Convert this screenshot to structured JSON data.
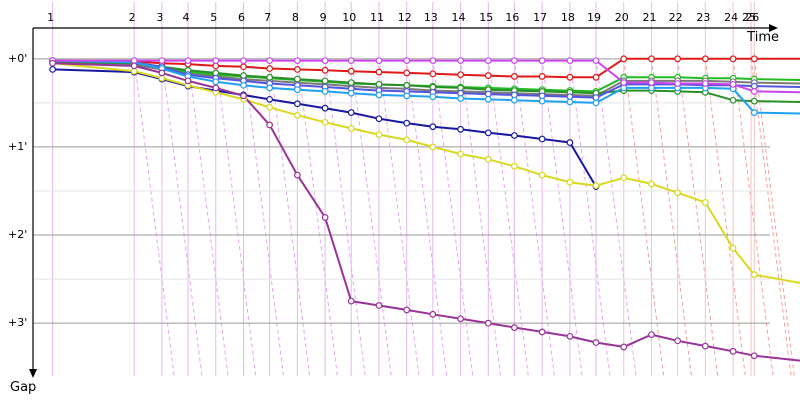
{
  "chart_data": {
    "type": "line",
    "chart_kind": "gap chart (lap chart of gaps to leader)",
    "xlabel": "Time",
    "ylabel": "Gap",
    "x_ticks": [
      "1",
      "2",
      "3",
      "4",
      "5",
      "6",
      "7",
      "8",
      "9",
      "10",
      "11",
      "12",
      "13",
      "14",
      "15",
      "16",
      "17",
      "18",
      "19",
      "20",
      "21",
      "22",
      "23",
      "24",
      "25",
      "26"
    ],
    "x_tick_times": [
      0,
      0.5,
      0.67,
      0.83,
      1.0,
      1.17,
      1.33,
      1.5,
      1.67,
      1.83,
      2.0,
      2.17,
      2.33,
      2.5,
      2.67,
      2.83,
      3.0,
      3.17,
      3.33,
      3.5,
      3.67,
      3.83,
      4.0,
      4.17,
      4.28,
      4.3
    ],
    "y_ticks": [
      "+0'",
      "+1'",
      "+2'",
      "+3'"
    ],
    "y_tick_values": [
      0,
      1,
      2,
      3
    ],
    "ylim": [
      -0.35,
      3.6
    ],
    "xlim": [
      -0.12,
      4.58
    ],
    "y_inverted": true,
    "grid": true,
    "legend": "none",
    "series": [
      {
        "color": "#e01818",
        "points": [
          [
            0,
            0.02
          ],
          [
            0.5,
            0.03
          ],
          [
            0.67,
            0.05
          ],
          [
            0.83,
            0.06
          ],
          [
            1.0,
            0.08
          ],
          [
            1.17,
            0.09
          ],
          [
            1.33,
            0.11
          ],
          [
            1.5,
            0.12
          ],
          [
            1.67,
            0.13
          ],
          [
            1.83,
            0.14
          ],
          [
            2.0,
            0.15
          ],
          [
            2.17,
            0.16
          ],
          [
            2.33,
            0.17
          ],
          [
            2.5,
            0.18
          ],
          [
            2.67,
            0.19
          ],
          [
            2.83,
            0.2
          ],
          [
            3.0,
            0.2
          ],
          [
            3.17,
            0.21
          ],
          [
            3.33,
            0.21
          ],
          [
            3.5,
            0.0
          ],
          [
            3.67,
            0.0
          ],
          [
            3.83,
            0.0
          ],
          [
            4.0,
            0.0
          ],
          [
            4.17,
            0.0
          ],
          [
            4.3,
            0.0
          ],
          [
            4.6,
            0.0
          ]
        ]
      },
      {
        "color": "#22bb22",
        "points": [
          [
            0,
            0.03
          ],
          [
            0.5,
            0.06
          ],
          [
            0.67,
            0.1
          ],
          [
            0.83,
            0.15
          ],
          [
            1.0,
            0.18
          ],
          [
            1.17,
            0.2
          ],
          [
            1.33,
            0.22
          ],
          [
            1.5,
            0.24
          ],
          [
            1.67,
            0.26
          ],
          [
            1.83,
            0.28
          ],
          [
            2.0,
            0.29
          ],
          [
            2.17,
            0.3
          ],
          [
            2.33,
            0.31
          ],
          [
            2.5,
            0.32
          ],
          [
            2.67,
            0.33
          ],
          [
            2.83,
            0.34
          ],
          [
            3.0,
            0.35
          ],
          [
            3.17,
            0.36
          ],
          [
            3.33,
            0.37
          ],
          [
            3.5,
            0.21
          ],
          [
            3.67,
            0.21
          ],
          [
            3.83,
            0.21
          ],
          [
            4.0,
            0.22
          ],
          [
            4.17,
            0.22
          ],
          [
            4.3,
            0.23
          ],
          [
            4.6,
            0.24
          ]
        ]
      },
      {
        "color": "#7a7a7a",
        "points": [
          [
            0,
            0.04
          ],
          [
            0.5,
            0.07
          ],
          [
            0.67,
            0.12
          ],
          [
            0.83,
            0.17
          ],
          [
            1.0,
            0.2
          ],
          [
            1.17,
            0.23
          ],
          [
            1.33,
            0.25
          ],
          [
            1.5,
            0.27
          ],
          [
            1.67,
            0.29
          ],
          [
            1.83,
            0.31
          ],
          [
            2.0,
            0.33
          ],
          [
            2.17,
            0.34
          ],
          [
            2.33,
            0.36
          ],
          [
            2.5,
            0.37
          ],
          [
            2.67,
            0.38
          ],
          [
            2.83,
            0.39
          ],
          [
            3.0,
            0.4
          ],
          [
            3.17,
            0.41
          ],
          [
            3.33,
            0.42
          ],
          [
            3.5,
            0.25
          ],
          [
            3.67,
            0.25
          ],
          [
            3.83,
            0.25
          ],
          [
            4.0,
            0.25
          ],
          [
            4.17,
            0.26
          ],
          [
            4.3,
            0.27
          ],
          [
            4.6,
            0.28
          ]
        ]
      },
      {
        "color": "#2a8f2a",
        "points": [
          [
            0,
            0.03
          ],
          [
            0.5,
            0.05
          ],
          [
            0.67,
            0.09
          ],
          [
            0.83,
            0.13
          ],
          [
            1.0,
            0.16
          ],
          [
            1.17,
            0.19
          ],
          [
            1.33,
            0.21
          ],
          [
            1.5,
            0.23
          ],
          [
            1.67,
            0.25
          ],
          [
            1.83,
            0.27
          ],
          [
            2.0,
            0.29
          ],
          [
            2.17,
            0.3
          ],
          [
            2.33,
            0.32
          ],
          [
            2.5,
            0.33
          ],
          [
            2.67,
            0.35
          ],
          [
            2.83,
            0.36
          ],
          [
            3.0,
            0.37
          ],
          [
            3.17,
            0.38
          ],
          [
            3.33,
            0.39
          ],
          [
            3.5,
            0.36
          ],
          [
            3.67,
            0.36
          ],
          [
            3.83,
            0.37
          ],
          [
            4.0,
            0.38
          ],
          [
            4.17,
            0.47
          ],
          [
            4.3,
            0.48
          ],
          [
            4.6,
            0.49
          ]
        ]
      },
      {
        "color": "#5555dd",
        "points": [
          [
            0,
            0.02
          ],
          [
            0.5,
            0.04
          ],
          [
            0.67,
            0.09
          ],
          [
            0.83,
            0.18
          ],
          [
            1.0,
            0.22
          ],
          [
            1.17,
            0.25
          ],
          [
            1.33,
            0.28
          ],
          [
            1.5,
            0.3
          ],
          [
            1.67,
            0.32
          ],
          [
            1.83,
            0.34
          ],
          [
            2.0,
            0.36
          ],
          [
            2.17,
            0.37
          ],
          [
            2.33,
            0.38
          ],
          [
            2.5,
            0.39
          ],
          [
            2.67,
            0.4
          ],
          [
            2.83,
            0.41
          ],
          [
            3.0,
            0.42
          ],
          [
            3.17,
            0.43
          ],
          [
            3.33,
            0.44
          ],
          [
            3.5,
            0.29
          ],
          [
            3.67,
            0.29
          ],
          [
            3.83,
            0.29
          ],
          [
            4.0,
            0.3
          ],
          [
            4.17,
            0.3
          ],
          [
            4.3,
            0.31
          ],
          [
            4.6,
            0.32
          ]
        ]
      },
      {
        "color": "#20a0f0",
        "points": [
          [
            0,
            0.02
          ],
          [
            0.5,
            0.04
          ],
          [
            0.67,
            0.11
          ],
          [
            0.83,
            0.2
          ],
          [
            1.0,
            0.26
          ],
          [
            1.17,
            0.3
          ],
          [
            1.33,
            0.33
          ],
          [
            1.5,
            0.35
          ],
          [
            1.67,
            0.37
          ],
          [
            1.83,
            0.39
          ],
          [
            2.0,
            0.41
          ],
          [
            2.17,
            0.42
          ],
          [
            2.33,
            0.43
          ],
          [
            2.5,
            0.45
          ],
          [
            2.67,
            0.46
          ],
          [
            2.83,
            0.47
          ],
          [
            3.0,
            0.48
          ],
          [
            3.17,
            0.49
          ],
          [
            3.33,
            0.5
          ],
          [
            3.5,
            0.33
          ],
          [
            3.67,
            0.33
          ],
          [
            3.83,
            0.33
          ],
          [
            4.0,
            0.33
          ],
          [
            4.17,
            0.34
          ],
          [
            4.3,
            0.61
          ],
          [
            4.6,
            0.62
          ]
        ]
      },
      {
        "color": "#cc44ee",
        "points": [
          [
            0,
            0.02
          ],
          [
            0.5,
            0.02
          ],
          [
            0.67,
            0.02
          ],
          [
            0.83,
            0.02
          ],
          [
            1.0,
            0.02
          ],
          [
            1.17,
            0.02
          ],
          [
            1.33,
            0.02
          ],
          [
            1.5,
            0.02
          ],
          [
            1.67,
            0.02
          ],
          [
            1.83,
            0.02
          ],
          [
            2.0,
            0.02
          ],
          [
            2.17,
            0.02
          ],
          [
            2.33,
            0.02
          ],
          [
            2.5,
            0.02
          ],
          [
            2.67,
            0.02
          ],
          [
            2.83,
            0.02
          ],
          [
            3.0,
            0.02
          ],
          [
            3.17,
            0.02
          ],
          [
            3.33,
            0.02
          ],
          [
            3.5,
            0.27
          ],
          [
            3.67,
            0.27
          ],
          [
            3.83,
            0.28
          ],
          [
            4.0,
            0.28
          ],
          [
            4.17,
            0.29
          ],
          [
            4.3,
            0.37
          ],
          [
            4.6,
            0.38
          ]
        ]
      },
      {
        "color": "#1818a0",
        "points": [
          [
            0,
            0.12
          ],
          [
            0.5,
            0.15
          ],
          [
            0.67,
            0.23
          ],
          [
            0.83,
            0.31
          ],
          [
            1.0,
            0.36
          ],
          [
            1.17,
            0.41
          ],
          [
            1.33,
            0.46
          ],
          [
            1.5,
            0.51
          ],
          [
            1.67,
            0.56
          ],
          [
            1.83,
            0.61
          ],
          [
            2.0,
            0.68
          ],
          [
            2.17,
            0.73
          ],
          [
            2.33,
            0.77
          ],
          [
            2.5,
            0.8
          ],
          [
            2.67,
            0.84
          ],
          [
            2.83,
            0.87
          ],
          [
            3.0,
            0.91
          ],
          [
            3.17,
            0.95
          ],
          [
            3.33,
            1.45
          ]
        ]
      },
      {
        "color": "#d8d820",
        "points": [
          [
            0,
            0.05
          ],
          [
            0.5,
            0.14
          ],
          [
            0.67,
            0.22
          ],
          [
            0.83,
            0.3
          ],
          [
            1.0,
            0.38
          ],
          [
            1.17,
            0.46
          ],
          [
            1.33,
            0.55
          ],
          [
            1.5,
            0.64
          ],
          [
            1.67,
            0.72
          ],
          [
            1.83,
            0.79
          ],
          [
            2.0,
            0.86
          ],
          [
            2.17,
            0.92
          ],
          [
            2.33,
            1.0
          ],
          [
            2.5,
            1.08
          ],
          [
            2.67,
            1.14
          ],
          [
            2.83,
            1.22
          ],
          [
            3.0,
            1.32
          ],
          [
            3.17,
            1.4
          ],
          [
            3.33,
            1.44
          ],
          [
            3.5,
            1.35
          ],
          [
            3.67,
            1.42
          ],
          [
            3.83,
            1.52
          ],
          [
            4.0,
            1.63
          ],
          [
            4.17,
            2.15
          ],
          [
            4.3,
            2.45
          ],
          [
            4.6,
            2.55
          ]
        ]
      },
      {
        "color": "#993399",
        "points": [
          [
            0,
            0.05
          ],
          [
            0.5,
            0.08
          ],
          [
            0.67,
            0.16
          ],
          [
            0.83,
            0.25
          ],
          [
            1.0,
            0.33
          ],
          [
            1.17,
            0.42
          ],
          [
            1.33,
            0.75
          ],
          [
            1.5,
            1.32
          ],
          [
            1.67,
            1.8
          ],
          [
            1.83,
            2.75
          ],
          [
            2.0,
            2.8
          ],
          [
            2.17,
            2.85
          ],
          [
            2.33,
            2.9
          ],
          [
            2.5,
            2.95
          ],
          [
            2.67,
            3.0
          ],
          [
            2.83,
            3.05
          ],
          [
            3.0,
            3.1
          ],
          [
            3.17,
            3.15
          ],
          [
            3.33,
            3.22
          ],
          [
            3.5,
            3.27
          ],
          [
            3.67,
            3.13
          ],
          [
            3.83,
            3.2
          ],
          [
            4.0,
            3.26
          ],
          [
            4.17,
            3.32
          ],
          [
            4.3,
            3.37
          ],
          [
            4.6,
            3.43
          ]
        ]
      }
    ]
  }
}
